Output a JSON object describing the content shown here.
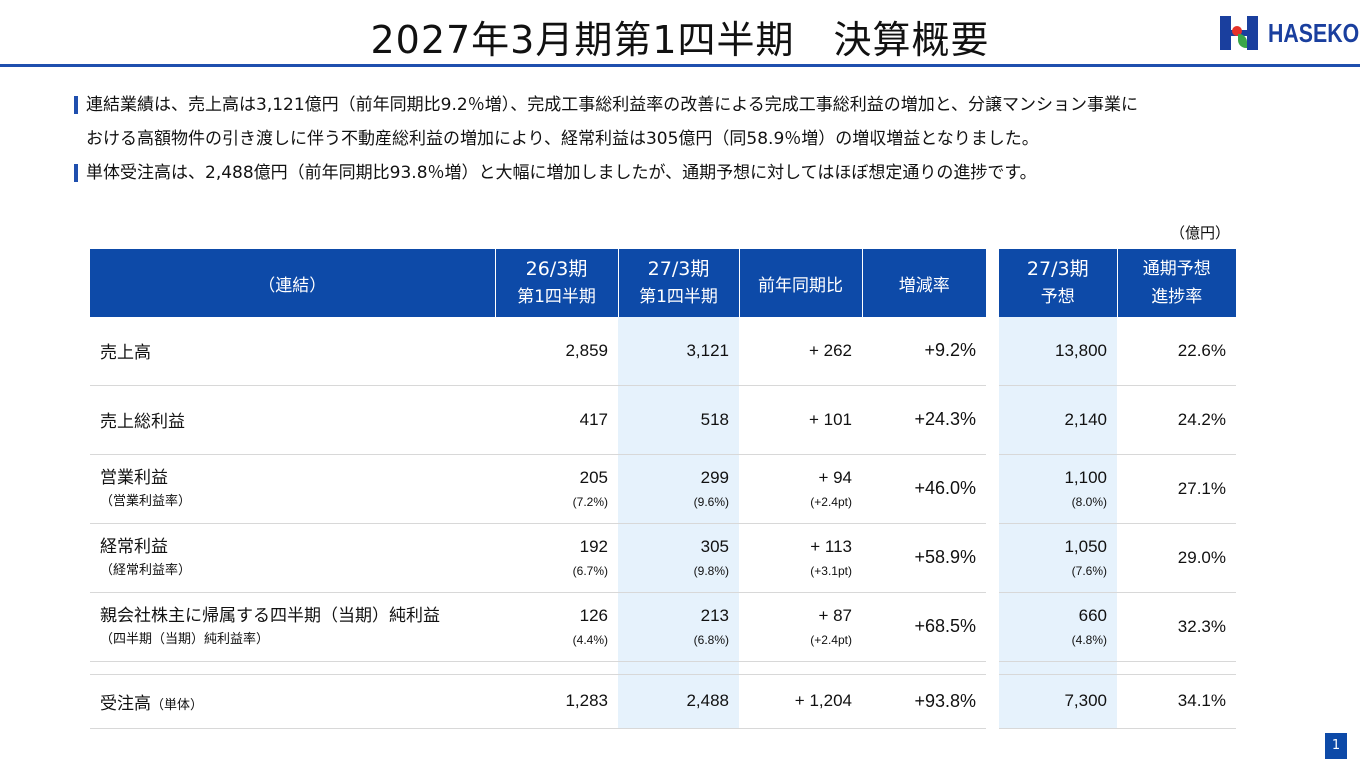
{
  "header": {
    "title": "2027年3月期第1四半期　決算概要",
    "logo_text": "HASEKO",
    "colors": {
      "primary": "#0d4aa8",
      "highlight": "#e6f2fc",
      "logo_red": "#e63229",
      "logo_green": "#3aa64a"
    }
  },
  "summary": {
    "lines": [
      "連結業績は、売上高は3,121億円（前年同期比9.2％増）、完成工事総利益率の改善による完成工事総利益の増加と、分譲マンション事業に",
      "おける高額物件の引き渡しに伴う不動産総利益の増加により、経常利益は305億円（同58.9％増）の増収増益となりました。",
      "単体受注高は、2,488億円（前年同期比93.8％増）と大幅に増加しましたが、通期予想に対してはほぼ想定通りの進捗です。"
    ]
  },
  "table": {
    "unit": "（億円）",
    "headers": {
      "category": "（連結）",
      "prev_top": "26/3期",
      "prev_bottom": "第1四半期",
      "curr_top": "27/3期",
      "curr_bottom": "第1四半期",
      "yoy": "前年同期比",
      "rate": "増減率",
      "fc_top": "27/3期",
      "fc_bottom": "予想",
      "prog_top": "通期予想",
      "prog_bottom": "進捗率"
    },
    "rows": [
      {
        "label": "売上高",
        "sublabel": "",
        "prev": "2,859",
        "prev_sub": "",
        "curr": "3,121",
        "curr_sub": "",
        "yoy": "+ 262",
        "yoy_sub": "",
        "rate": "+9.2%",
        "fc": "13,800",
        "fc_sub": "",
        "prog": "22.6%"
      },
      {
        "label": "売上総利益",
        "sublabel": "",
        "prev": "417",
        "prev_sub": "",
        "curr": "518",
        "curr_sub": "",
        "yoy": "+ 101",
        "yoy_sub": "",
        "rate": "+24.3%",
        "fc": "2,140",
        "fc_sub": "",
        "prog": "24.2%"
      },
      {
        "label": "営業利益",
        "sublabel": "（営業利益率）",
        "prev": "205",
        "prev_sub": "(7.2%)",
        "curr": "299",
        "curr_sub": "(9.6%)",
        "yoy": "+ 94",
        "yoy_sub": "(+2.4pt)",
        "rate": "+46.0%",
        "fc": "1,100",
        "fc_sub": "(8.0%)",
        "prog": "27.1%"
      },
      {
        "label": "経常利益",
        "sublabel": "（経常利益率）",
        "prev": "192",
        "prev_sub": "(6.7%)",
        "curr": "305",
        "curr_sub": "(9.8%)",
        "yoy": "+ 113",
        "yoy_sub": "(+3.1pt)",
        "rate": "+58.9%",
        "fc": "1,050",
        "fc_sub": "(7.6%)",
        "prog": "29.0%"
      },
      {
        "label": "親会社株主に帰属する四半期（当期）純利益",
        "sublabel": "（四半期（当期）純利益率）",
        "prev": "126",
        "prev_sub": "(4.4%)",
        "curr": "213",
        "curr_sub": "(6.8%)",
        "yoy": "+ 87",
        "yoy_sub": "(+2.4pt)",
        "rate": "+68.5%",
        "fc": "660",
        "fc_sub": "(4.8%)",
        "prog": "32.3%"
      }
    ],
    "orders": {
      "label": "受注高",
      "label_note": "（単体）",
      "prev": "1,283",
      "curr": "2,488",
      "yoy": "+ 1,204",
      "rate": "+93.8%",
      "fc": "7,300",
      "prog": "34.1%"
    }
  },
  "page_number": "1"
}
